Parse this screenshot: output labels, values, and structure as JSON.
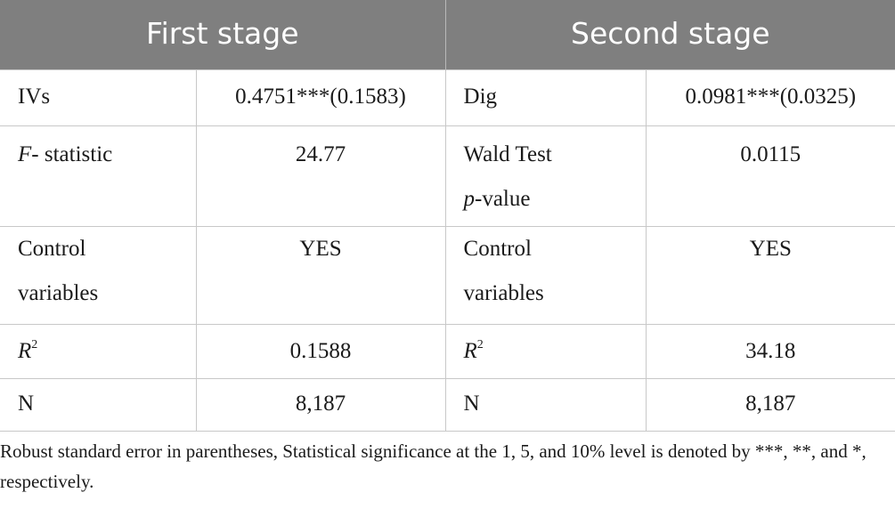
{
  "headers": {
    "first": "First stage",
    "second": "Second stage"
  },
  "rows": [
    {
      "l1": "IVs",
      "v1": "0.4751***(0.1583)",
      "l2": "Dig",
      "v2": "0.0981***(0.0325)"
    },
    {
      "l1_ital": "F",
      "l1_rest": "- statistic",
      "v1": "24.77",
      "l2_line1": "Wald Test",
      "l2_line2_ital": "p",
      "l2_line2_rest": "-value",
      "v2": "0.0115"
    },
    {
      "l1_line1": "Control",
      "l1_line2": "variables",
      "v1": "YES",
      "l2_line1": "Control",
      "l2_line2": "variables",
      "v2": "YES"
    },
    {
      "l1_ital": "R",
      "l1_sup": "2",
      "v1": "0.1588",
      "l2_ital": "R",
      "l2_sup": "2",
      "v2": "34.18"
    },
    {
      "l1": "N",
      "v1": "8,187",
      "l2": "N",
      "v2": "8,187"
    }
  ],
  "note": "Robust standard error in parentheses, Statistical significance at the 1, 5, and 10% level is denoted by ***, **, and *, respectively."
}
